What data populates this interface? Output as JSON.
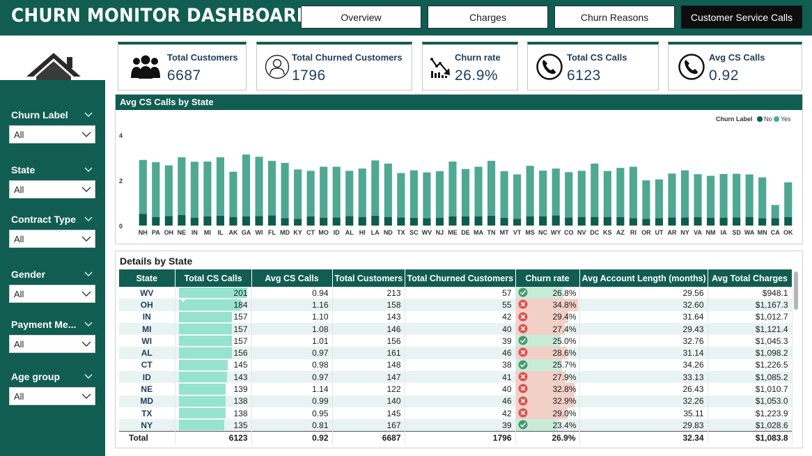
{
  "app": {
    "title": "CHURN MONITOR DASHBOARD"
  },
  "nav": [
    {
      "label": "Overview",
      "active": false
    },
    {
      "label": "Charges",
      "active": false
    },
    {
      "label": "Churn Reasons",
      "active": false
    },
    {
      "label": "Customer Service Calls",
      "active": true
    }
  ],
  "sidebar": {
    "icon": "home-icon",
    "filters": [
      {
        "label": "Churn Label",
        "value": "All"
      },
      {
        "label": "State",
        "value": "All"
      },
      {
        "label": "Contract Type",
        "value": "All"
      },
      {
        "label": "Gender",
        "value": "All"
      },
      {
        "label": "Payment Me...",
        "value": "All"
      },
      {
        "label": "Age group",
        "value": "All"
      }
    ]
  },
  "kpis": [
    {
      "label": "Total Customers",
      "value": "6687",
      "icon": "people-group-icon"
    },
    {
      "label": "Total Churned Customers",
      "value": "1796",
      "icon": "user-outline-icon"
    },
    {
      "label": "Churn rate",
      "value": "26.9%",
      "icon": "declining-chart-icon"
    },
    {
      "label": "Total CS Calls",
      "value": "6123",
      "icon": "phone-icon"
    },
    {
      "label": "Avg CS Calls",
      "value": "0.92",
      "icon": "phone-icon"
    }
  ],
  "chart_title": "Avg CS Calls by State",
  "chart_data": {
    "type": "bar",
    "stacked": true,
    "title": "Avg CS Calls by State",
    "legend_title": "Churn Label",
    "legend_position": "top-right",
    "ylim": [
      0,
      4
    ],
    "yticks": [
      0,
      2,
      4
    ],
    "categories": [
      "NH",
      "PA",
      "OH",
      "NE",
      "IN",
      "MI",
      "IL",
      "AK",
      "GA",
      "WI",
      "FL",
      "MD",
      "KY",
      "CT",
      "MO",
      "ID",
      "AL",
      "HI",
      "LA",
      "ND",
      "TX",
      "SC",
      "WV",
      "NJ",
      "ME",
      "DE",
      "MA",
      "TN",
      "MT",
      "VT",
      "MS",
      "NC",
      "WY",
      "CO",
      "NV",
      "DC",
      "KS",
      "AZ",
      "RI",
      "OR",
      "UT",
      "AR",
      "NY",
      "VA",
      "NM",
      "IA",
      "SD",
      "WA",
      "MN",
      "CA",
      "OK"
    ],
    "series": [
      {
        "name": "No",
        "color": "#0d5c4f",
        "values": [
          0.52,
          0.38,
          0.42,
          0.47,
          0.35,
          0.4,
          0.43,
          0.38,
          0.4,
          0.42,
          0.45,
          0.33,
          0.3,
          0.4,
          0.35,
          0.36,
          0.42,
          0.38,
          0.43,
          0.38,
          0.36,
          0.34,
          0.33,
          0.35,
          0.4,
          0.4,
          0.4,
          0.43,
          0.34,
          0.3,
          0.4,
          0.4,
          0.45,
          0.36,
          0.38,
          0.38,
          0.38,
          0.38,
          0.33,
          0.3,
          0.33,
          0.36,
          0.36,
          0.37,
          0.35,
          0.35,
          0.36,
          0.38,
          0.33,
          0.33,
          0.38
        ]
      },
      {
        "name": "Yes",
        "color": "#4fa892",
        "values": [
          2.38,
          2.42,
          2.24,
          2.55,
          2.47,
          2.43,
          2.59,
          2.0,
          2.74,
          2.62,
          2.41,
          2.44,
          2.18,
          2.02,
          2.25,
          2.24,
          2.0,
          2.14,
          2.45,
          2.36,
          1.96,
          2.1,
          2.02,
          2.05,
          2.43,
          2.1,
          2.2,
          2.43,
          2.06,
          1.96,
          2.24,
          2.03,
          2.07,
          2.0,
          2.04,
          2.36,
          2.03,
          2.17,
          2.27,
          1.7,
          1.71,
          1.94,
          2.08,
          1.9,
          1.85,
          1.93,
          1.93,
          1.88,
          1.8,
          0.58,
          1.53
        ]
      }
    ]
  },
  "table": {
    "title": "Details by State",
    "columns": [
      "State",
      "Total CS Calls",
      "Avg CS Calls",
      "Total Customers",
      "Total Churned Customers",
      "Churn rate",
      "Avg Account Length (months)",
      "Avg Total Charges"
    ],
    "rows": [
      {
        "state": "WV",
        "cs_calls": "201",
        "avg_cs": "0.94",
        "customers": "213",
        "churned": "57",
        "rate": "26.8%",
        "rate_ok": true,
        "acct": "29.56",
        "charges": "$948.1"
      },
      {
        "state": "OH",
        "cs_calls": "184",
        "avg_cs": "1.16",
        "customers": "158",
        "churned": "55",
        "rate": "34.8%",
        "rate_ok": false,
        "acct": "32.60",
        "charges": "$1,167.3"
      },
      {
        "state": "IN",
        "cs_calls": "157",
        "avg_cs": "1.10",
        "customers": "143",
        "churned": "42",
        "rate": "29.4%",
        "rate_ok": false,
        "acct": "31.64",
        "charges": "$1,012.7"
      },
      {
        "state": "MI",
        "cs_calls": "157",
        "avg_cs": "1.08",
        "customers": "146",
        "churned": "40",
        "rate": "27.4%",
        "rate_ok": false,
        "acct": "29.43",
        "charges": "$1,121.4"
      },
      {
        "state": "WI",
        "cs_calls": "157",
        "avg_cs": "1.01",
        "customers": "156",
        "churned": "39",
        "rate": "25.0%",
        "rate_ok": true,
        "acct": "32.76",
        "charges": "$1,045.3"
      },
      {
        "state": "AL",
        "cs_calls": "156",
        "avg_cs": "0.97",
        "customers": "161",
        "churned": "46",
        "rate": "28.6%",
        "rate_ok": false,
        "acct": "31.14",
        "charges": "$1,098.2"
      },
      {
        "state": "CT",
        "cs_calls": "145",
        "avg_cs": "0.98",
        "customers": "148",
        "churned": "38",
        "rate": "25.7%",
        "rate_ok": true,
        "acct": "34.26",
        "charges": "$1,226.5"
      },
      {
        "state": "ID",
        "cs_calls": "143",
        "avg_cs": "0.97",
        "customers": "147",
        "churned": "41",
        "rate": "27.9%",
        "rate_ok": false,
        "acct": "33.13",
        "charges": "$1,085.2"
      },
      {
        "state": "NE",
        "cs_calls": "139",
        "avg_cs": "1.14",
        "customers": "122",
        "churned": "40",
        "rate": "32.8%",
        "rate_ok": false,
        "acct": "26.43",
        "charges": "$1,010.7"
      },
      {
        "state": "MD",
        "cs_calls": "138",
        "avg_cs": "0.99",
        "customers": "140",
        "churned": "46",
        "rate": "32.9%",
        "rate_ok": false,
        "acct": "32.26",
        "charges": "$1,053.0"
      },
      {
        "state": "TX",
        "cs_calls": "138",
        "avg_cs": "0.95",
        "customers": "145",
        "churned": "42",
        "rate": "29.0%",
        "rate_ok": false,
        "acct": "35.11",
        "charges": "$1,223.9"
      },
      {
        "state": "NY",
        "cs_calls": "135",
        "avg_cs": "0.81",
        "customers": "167",
        "churned": "39",
        "rate": "23.4%",
        "rate_ok": true,
        "acct": "29.83",
        "charges": "$1,028.6"
      }
    ],
    "total": {
      "state": "Total",
      "cs_calls": "6123",
      "avg_cs": "0.92",
      "customers": "6687",
      "churned": "1796",
      "rate": "26.9%",
      "acct": "32.34",
      "charges": "$1,083.8"
    }
  },
  "colors": {
    "brand": "#115d52",
    "bar_no": "#0d5c4f",
    "bar_yes": "#4fa892",
    "data_bar": "#96e3cf",
    "good_icon": "#4a9a6e",
    "bad_icon": "#d9534f"
  }
}
